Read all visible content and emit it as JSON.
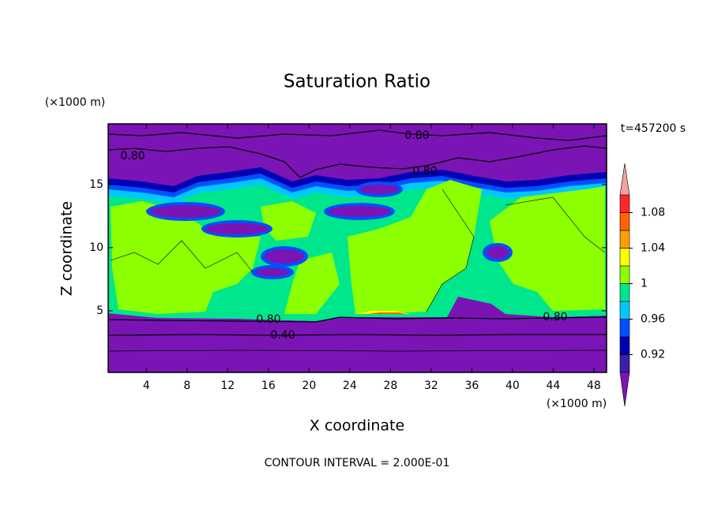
{
  "chart_data": {
    "type": "contour",
    "title": "Saturation Ratio",
    "xlabel": "X coordinate",
    "ylabel": "Z coordinate",
    "xunit": "(×1000 m)",
    "yunit": "(×1000 m)",
    "time_label": "t=457200 s",
    "footer": "CONTOUR INTERVAL = 2.000E-01",
    "xlim": [
      0.25,
      49.25
    ],
    "ylim": [
      0.125,
      19.8
    ],
    "xticks": [
      4,
      8,
      12,
      16,
      20,
      24,
      28,
      32,
      36,
      40,
      44,
      48
    ],
    "yticks": [
      5,
      10,
      15
    ],
    "colorbar": {
      "levels": [
        0.9,
        0.92,
        0.94,
        0.96,
        0.98,
        1,
        1.02,
        1.04,
        1.06,
        1.08,
        1.1
      ],
      "colors": [
        "#7b14b4",
        "#3c1ea8",
        "#0000b4",
        "#0050ff",
        "#00c8ff",
        "#00e68c",
        "#8cff00",
        "#ffff00",
        "#ffa000",
        "#ff6400",
        "#ff2828",
        "#f4a0a0"
      ],
      "ticks": [
        0.92,
        0.96,
        1,
        1.04,
        1.08
      ]
    },
    "contour_labels": [
      {
        "value": 0.8,
        "label": "0.80"
      },
      {
        "value": 0.8,
        "label": "0.80"
      },
      {
        "value": 0.8,
        "label": "0.80"
      },
      {
        "value": 0.8,
        "label": "0.80"
      },
      {
        "value": 0.8,
        "label": "0.80"
      },
      {
        "value": 0.4,
        "label": "0.40"
      }
    ]
  }
}
